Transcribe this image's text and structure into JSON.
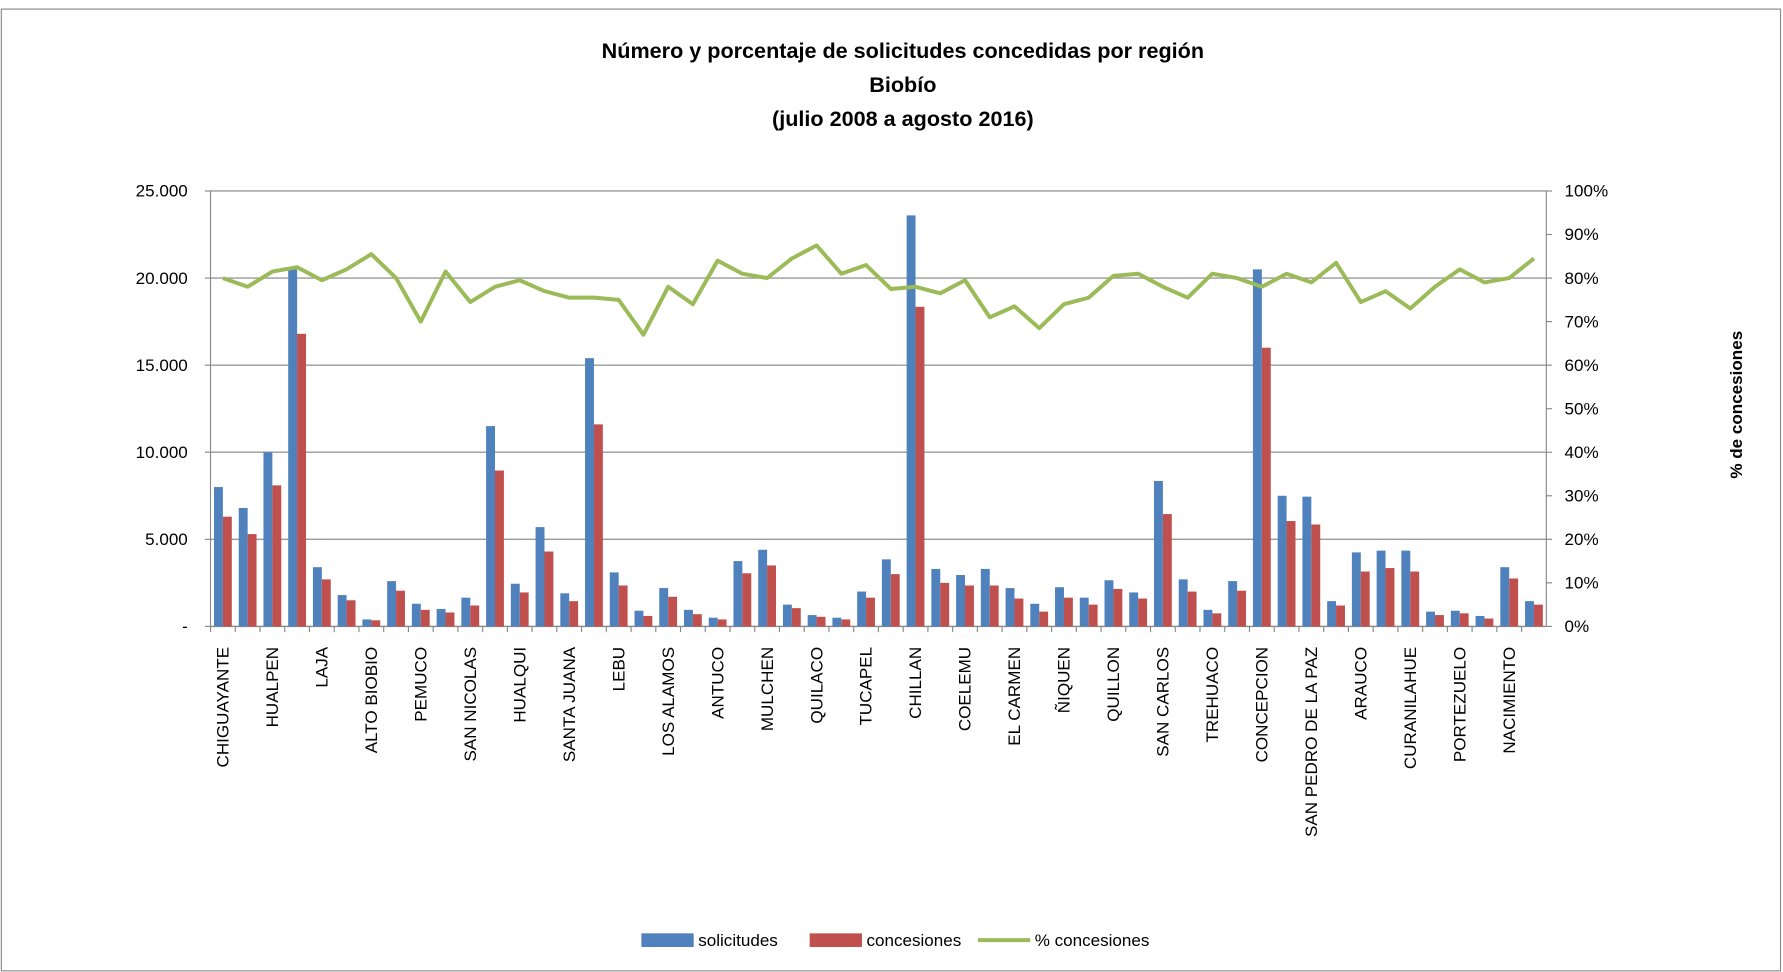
{
  "chart_data": {
    "type": "bar",
    "title": "Número y porcentaje de solicitudes concedidas por región",
    "subtitle": "Biobío",
    "subtitle2": "(julio 2008 a agosto 2016)",
    "y2_label": "% de concesiones",
    "legend": "bottom",
    "categories": [
      "CHIGUAYANTE",
      null,
      "HUALPEN",
      null,
      "LAJA",
      null,
      "ALTO BIOBIO",
      null,
      "PEMUCO",
      null,
      "SAN NICOLAS",
      null,
      "HUALQUI",
      null,
      "SANTA JUANA",
      null,
      "LEBU",
      null,
      "LOS ALAMOS",
      null,
      "ANTUCO",
      null,
      "MULCHEN",
      null,
      "QUILACO",
      null,
      "TUCAPEL",
      null,
      "CHILLAN",
      null,
      "COELEMU",
      null,
      "EL CARMEN",
      null,
      "ÑIQUEN",
      null,
      "QUILLON",
      null,
      "SAN CARLOS",
      null,
      "TREHUACO",
      null,
      "CONCEPCION",
      null,
      "SAN PEDRO DE LA PAZ",
      null,
      "ARAUCO",
      null,
      "CURANILAHUE",
      null,
      "PORTEZUELO",
      null,
      "NACIMIENTO",
      null
    ],
    "series": [
      {
        "name": "solicitudes",
        "color": "#4f81bd",
        "type": "bar",
        "values": [
          8000,
          6800,
          10000,
          20500,
          3400,
          1800,
          400,
          2600,
          1300,
          1000,
          1650,
          11500,
          2450,
          5700,
          1900,
          15400,
          3100,
          900,
          2200,
          950,
          500,
          3750,
          4400,
          1250,
          650,
          500,
          2000,
          3850,
          23600,
          3300,
          2950,
          3300,
          2200,
          1300,
          2250,
          1650,
          2650,
          1950,
          8350,
          2700,
          950,
          2600,
          20500,
          7500,
          7450,
          1450,
          4250,
          4350,
          4350,
          850,
          900,
          600,
          3400,
          1450
        ]
      },
      {
        "name": "concesiones",
        "color": "#c0504d",
        "type": "bar",
        "values": [
          6300,
          5300,
          8100,
          16800,
          2700,
          1500,
          350,
          2050,
          950,
          800,
          1200,
          8950,
          1950,
          4300,
          1450,
          11600,
          2350,
          600,
          1700,
          700,
          400,
          3050,
          3500,
          1050,
          550,
          400,
          1650,
          3000,
          18350,
          2500,
          2350,
          2350,
          1600,
          850,
          1650,
          1250,
          2150,
          1600,
          6450,
          2000,
          750,
          2050,
          16000,
          6050,
          5850,
          1200,
          3150,
          3350,
          3150,
          650,
          750,
          450,
          2750,
          1250
        ]
      },
      {
        "name": "% concesiones",
        "color": "#9bbb59",
        "type": "line",
        "axis": "y2",
        "values": [
          80,
          78,
          81.5,
          82.5,
          79.5,
          82,
          85.5,
          80,
          70,
          81.5,
          74.5,
          78,
          79.5,
          77,
          75.5,
          75.5,
          75,
          67,
          78,
          74,
          84,
          81,
          80,
          84.5,
          87.5,
          81,
          83,
          77.5,
          78,
          76.5,
          79.5,
          71,
          73.5,
          68.5,
          74,
          75.5,
          80.5,
          81,
          78,
          75.5,
          81,
          80,
          78,
          81,
          79,
          83.5,
          74.5,
          77,
          73,
          78,
          82,
          79,
          80,
          84.5
        ]
      }
    ],
    "ylim": [
      0,
      25000
    ],
    "yticks": [
      {
        "value": 0,
        "label": "-"
      },
      {
        "value": 5000,
        "label": "5.000"
      },
      {
        "value": 10000,
        "label": "10.000"
      },
      {
        "value": 15000,
        "label": "15.000"
      },
      {
        "value": 20000,
        "label": "20.000"
      },
      {
        "value": 25000,
        "label": "25.000"
      }
    ],
    "y2lim": [
      0,
      100
    ],
    "y2ticks": [
      {
        "value": 0,
        "label": "0%"
      },
      {
        "value": 10,
        "label": "10%"
      },
      {
        "value": 20,
        "label": "20%"
      },
      {
        "value": 30,
        "label": "30%"
      },
      {
        "value": 40,
        "label": "40%"
      },
      {
        "value": 50,
        "label": "50%"
      },
      {
        "value": 60,
        "label": "60%"
      },
      {
        "value": 70,
        "label": "70%"
      },
      {
        "value": 80,
        "label": "80%"
      },
      {
        "value": 90,
        "label": "90%"
      },
      {
        "value": 100,
        "label": "100%"
      }
    ],
    "grid": true
  }
}
